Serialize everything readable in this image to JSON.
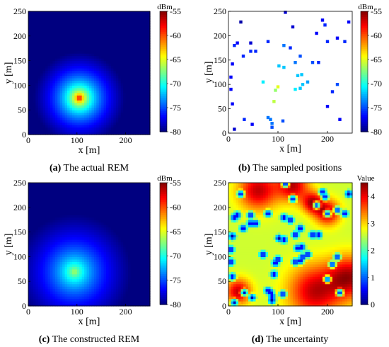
{
  "chart_data": [
    {
      "type": "heatmap",
      "id": "a",
      "caption_label": "(a)",
      "caption_text": "The actual REM",
      "xlabel": "x [m]",
      "ylabel": "y [m]",
      "xlim": [
        0,
        250
      ],
      "ylim": [
        0,
        250
      ],
      "xticks": [
        0,
        100,
        200
      ],
      "yticks": [
        0,
        50,
        100,
        150,
        200,
        250
      ],
      "colorbar": {
        "unit": "dBm",
        "range": [
          -80,
          -55
        ],
        "ticks": [
          -55,
          -60,
          -65,
          -70,
          -75,
          -80
        ],
        "colormap": "jet"
      },
      "field": {
        "kind": "path-loss",
        "source_x": 105,
        "source_y": 75,
        "peak": -55
      }
    },
    {
      "type": "scatter",
      "id": "b",
      "caption_label": "(b)",
      "caption_text": "The sampled positions",
      "xlabel": "x [m]",
      "ylabel": "y [m]",
      "xlim": [
        0,
        250
      ],
      "ylim": [
        0,
        250
      ],
      "xticks": [
        0,
        100,
        200
      ],
      "yticks": [
        0,
        50,
        100,
        150,
        200,
        250
      ],
      "colorbar": {
        "unit": "dBm",
        "range": [
          -80,
          -55
        ],
        "ticks": [
          -55,
          -60,
          -65,
          -70,
          -75,
          -80
        ],
        "colormap": "jet"
      },
      "points": [
        {
          "x": 115,
          "y": 248,
          "v": -78
        },
        {
          "x": 25,
          "y": 228,
          "v": -79
        },
        {
          "x": 130,
          "y": 218,
          "v": -78
        },
        {
          "x": 190,
          "y": 232,
          "v": -77
        },
        {
          "x": 195,
          "y": 222,
          "v": -76
        },
        {
          "x": 243,
          "y": 228,
          "v": -77
        },
        {
          "x": 178,
          "y": 205,
          "v": -77
        },
        {
          "x": 220,
          "y": 195,
          "v": -77
        },
        {
          "x": 235,
          "y": 188,
          "v": -76
        },
        {
          "x": 12,
          "y": 180,
          "v": -76
        },
        {
          "x": 18,
          "y": 185,
          "v": -77
        },
        {
          "x": 45,
          "y": 185,
          "v": -78
        },
        {
          "x": 80,
          "y": 188,
          "v": -76
        },
        {
          "x": 112,
          "y": 180,
          "v": -74
        },
        {
          "x": 125,
          "y": 175,
          "v": -76
        },
        {
          "x": 200,
          "y": 188,
          "v": -76
        },
        {
          "x": 30,
          "y": 158,
          "v": -76
        },
        {
          "x": 45,
          "y": 168,
          "v": -76
        },
        {
          "x": 55,
          "y": 168,
          "v": -76
        },
        {
          "x": 8,
          "y": 142,
          "v": -77
        },
        {
          "x": 145,
          "y": 158,
          "v": -75
        },
        {
          "x": 135,
          "y": 145,
          "v": -74
        },
        {
          "x": 170,
          "y": 145,
          "v": -75
        },
        {
          "x": 182,
          "y": 145,
          "v": -76
        },
        {
          "x": 102,
          "y": 138,
          "v": -72
        },
        {
          "x": 112,
          "y": 135,
          "v": -72
        },
        {
          "x": 5,
          "y": 115,
          "v": -77
        },
        {
          "x": 148,
          "y": 120,
          "v": -72
        },
        {
          "x": 140,
          "y": 118,
          "v": -72
        },
        {
          "x": 70,
          "y": 105,
          "v": -71
        },
        {
          "x": 150,
          "y": 100,
          "v": -72
        },
        {
          "x": 160,
          "y": 105,
          "v": -73
        },
        {
          "x": 220,
          "y": 100,
          "v": -75
        },
        {
          "x": 100,
          "y": 95,
          "v": -65
        },
        {
          "x": 95,
          "y": 88,
          "v": -67
        },
        {
          "x": 135,
          "y": 90,
          "v": -71
        },
        {
          "x": 145,
          "y": 92,
          "v": -72
        },
        {
          "x": 210,
          "y": 85,
          "v": -76
        },
        {
          "x": 5,
          "y": 90,
          "v": -77
        },
        {
          "x": 92,
          "y": 65,
          "v": -66
        },
        {
          "x": 8,
          "y": 60,
          "v": -77
        },
        {
          "x": 200,
          "y": 55,
          "v": -77
        },
        {
          "x": 80,
          "y": 32,
          "v": -74
        },
        {
          "x": 85,
          "y": 28,
          "v": -74
        },
        {
          "x": 32,
          "y": 28,
          "v": -76
        },
        {
          "x": 88,
          "y": 20,
          "v": -74
        },
        {
          "x": 110,
          "y": 25,
          "v": -75
        },
        {
          "x": 225,
          "y": 28,
          "v": -77
        },
        {
          "x": 12,
          "y": 8,
          "v": -78
        },
        {
          "x": 48,
          "y": 18,
          "v": -77
        },
        {
          "x": 88,
          "y": 12,
          "v": -75
        }
      ]
    },
    {
      "type": "heatmap",
      "id": "c",
      "caption_label": "(c)",
      "caption_text": "The constructed REM",
      "xlabel": "x [m]",
      "ylabel": "y [m]",
      "xlim": [
        0,
        250
      ],
      "ylim": [
        0,
        250
      ],
      "xticks": [
        0,
        100,
        200
      ],
      "yticks": [
        0,
        50,
        100,
        150,
        200,
        250
      ],
      "colorbar": {
        "unit": "dBm",
        "range": [
          -80,
          -55
        ],
        "ticks": [
          -55,
          -60,
          -65,
          -70,
          -75,
          -80
        ],
        "colormap": "jet"
      },
      "field": {
        "kind": "smooth-estimate",
        "source_x": 95,
        "source_y": 70,
        "peak": -66
      }
    },
    {
      "type": "heatmap",
      "id": "d",
      "caption_label": "(d)",
      "caption_text": "The uncertainty",
      "xlabel": "x [m]",
      "ylabel": "y [m]",
      "xlim": [
        0,
        250
      ],
      "ylim": [
        0,
        250
      ],
      "xticks": [
        0,
        100,
        200
      ],
      "yticks": [
        0,
        50,
        100,
        150,
        200,
        250
      ],
      "colorbar": {
        "unit": "Value",
        "range": [
          0,
          4.5
        ],
        "ticks": [
          4,
          3,
          2,
          1,
          0
        ],
        "colormap": "jet"
      },
      "field": {
        "kind": "uncertainty",
        "max": 4.5,
        "base": 2.6
      }
    }
  ]
}
